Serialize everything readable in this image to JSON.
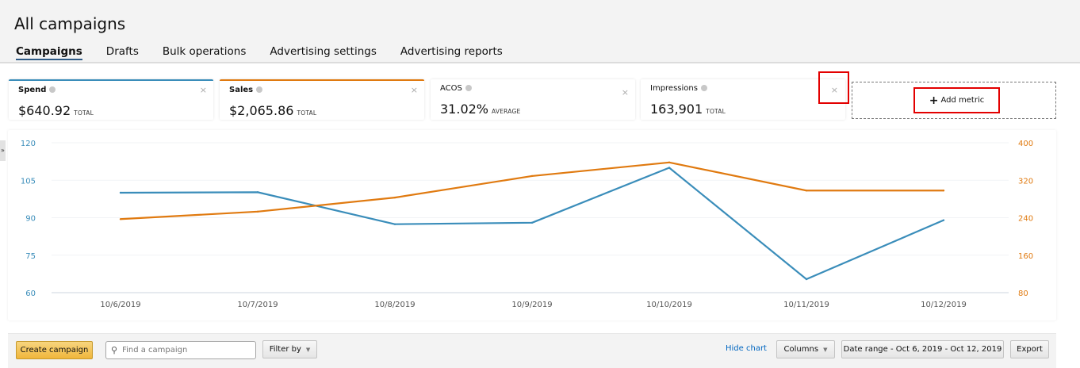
{
  "header": {
    "title": "All campaigns",
    "tabs": [
      {
        "label": "Campaigns",
        "active": true
      },
      {
        "label": "Drafts",
        "active": false
      },
      {
        "label": "Bulk operations",
        "active": false
      },
      {
        "label": "Advertising settings",
        "active": false
      },
      {
        "label": "Advertising reports",
        "active": false
      }
    ]
  },
  "metrics": [
    {
      "label": "Spend",
      "value": "$640.92",
      "sub": "TOTAL",
      "accent": "#3a8dba"
    },
    {
      "label": "Sales",
      "value": "$2,065.86",
      "sub": "TOTAL",
      "accent": "#e07a10"
    },
    {
      "label": "ACOS",
      "value": "31.02%",
      "sub": "AVERAGE",
      "accent": ""
    },
    {
      "label": "Impressions",
      "value": "163,901",
      "sub": "TOTAL",
      "accent": ""
    }
  ],
  "icons": {
    "close": "×",
    "plus": "+",
    "search": "🔍",
    "caret": "▼",
    "handle": "»"
  },
  "add_metric": {
    "label": "Add metric"
  },
  "toolbar": {
    "create_campaign": "Create campaign",
    "search_placeholder": "Find a campaign",
    "filter_by": "Filter by",
    "hide_chart": "Hide chart",
    "columns": "Columns",
    "date_range": "Date range - Oct 6, 2019 - Oct 12, 2019",
    "export": "Export"
  },
  "chart_data": {
    "type": "line",
    "title": "",
    "x": [
      "10/6/2019",
      "10/7/2019",
      "10/8/2019",
      "10/9/2019",
      "10/10/2019",
      "10/11/2019",
      "10/12/2019"
    ],
    "series": [
      {
        "name": "Spend",
        "axis": "left",
        "color": "#3a8dba",
        "values": [
          100,
          100.2,
          87.4,
          88,
          110,
          65.4,
          89
        ]
      },
      {
        "name": "Sales",
        "axis": "right",
        "color": "#e07a10",
        "values": [
          237,
          253,
          283,
          329,
          358,
          298,
          298
        ]
      }
    ],
    "y_left": {
      "range": [
        60,
        120
      ],
      "ticks": [
        120,
        105,
        90,
        75,
        60
      ],
      "color": "#3a8dba"
    },
    "y_right": {
      "range": [
        80,
        400
      ],
      "ticks": [
        400,
        320,
        240,
        160,
        80
      ],
      "color": "#e07a10"
    },
    "grid": true,
    "legend": "none"
  }
}
